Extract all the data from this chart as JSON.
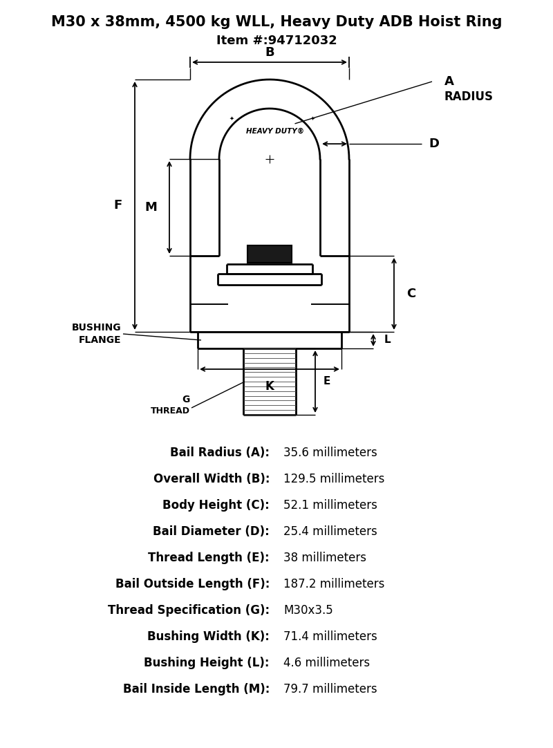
{
  "title_line1": "M30 x 38mm, 4500 kg WLL, Heavy Duty ADB Hoist Ring",
  "title_line2": "Item #:94712032",
  "bg_color": "#ffffff",
  "text_color": "#000000",
  "specs": [
    {
      "label": "Bail Radius (A):",
      "value": "35.6 millimeters"
    },
    {
      "label": "Overall Width (B):",
      "value": "129.5 millimeters"
    },
    {
      "label": "Body Height (C):",
      "value": "52.1 millimeters"
    },
    {
      "label": "Bail Diameter (D):",
      "value": "25.4 millimeters"
    },
    {
      "label": "Thread Length (E):",
      "value": "38 millimeters"
    },
    {
      "label": "Bail Outside Length (F):",
      "value": "187.2 millimeters"
    },
    {
      "label": "Thread Specification (G):",
      "value": "M30x3.5"
    },
    {
      "label": "Bushing Width (K):",
      "value": "71.4 millimeters"
    },
    {
      "label": "Bushing Height (L):",
      "value": "4.6 millimeters"
    },
    {
      "label": "Bail Inside Length (M):",
      "value": "79.7 millimeters"
    }
  ]
}
